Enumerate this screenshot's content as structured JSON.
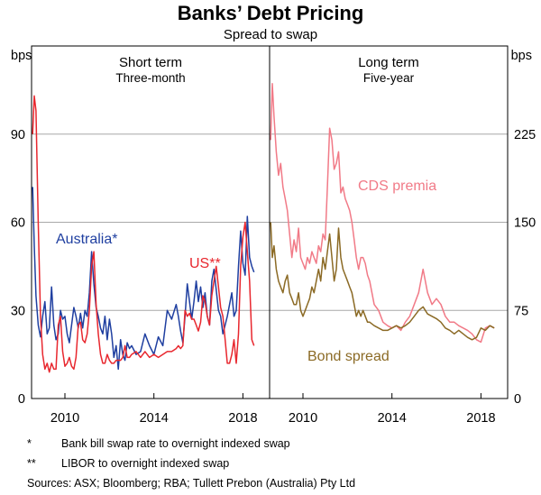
{
  "chart_data": {
    "type": "line",
    "title": "Banks’ Debt Pricing",
    "subtitle": "Spread to swap",
    "units": {
      "left": "bps",
      "right": "bps"
    },
    "panels": [
      {
        "title": "Short term",
        "subtitle": "Three-month",
        "ylim": [
          0,
          120
        ],
        "yticks": [
          0,
          30,
          60,
          90
        ],
        "xlim": [
          2008.5,
          2019.2
        ],
        "xticks": [
          2010,
          2014,
          2018
        ],
        "series": [
          {
            "name": "Australia*",
            "color": "#1f3fa0",
            "x": [
              2008.55,
              2008.62,
              2008.7,
              2008.8,
              2008.9,
              2009.0,
              2009.1,
              2009.2,
              2009.3,
              2009.4,
              2009.5,
              2009.6,
              2009.7,
              2009.8,
              2009.9,
              2010.0,
              2010.1,
              2010.2,
              2010.3,
              2010.4,
              2010.5,
              2010.6,
              2010.7,
              2010.8,
              2010.9,
              2011.0,
              2011.1,
              2011.2,
              2011.3,
              2011.4,
              2011.5,
              2011.6,
              2011.7,
              2011.8,
              2011.9,
              2012.0,
              2012.1,
              2012.2,
              2012.3,
              2012.4,
              2012.5,
              2012.6,
              2012.7,
              2012.8,
              2012.9,
              2013.0,
              2013.2,
              2013.4,
              2013.6,
              2013.8,
              2014.0,
              2014.2,
              2014.4,
              2014.6,
              2014.8,
              2015.0,
              2015.1,
              2015.2,
              2015.3,
              2015.4,
              2015.5,
              2015.6,
              2015.7,
              2015.8,
              2015.9,
              2016.0,
              2016.1,
              2016.2,
              2016.3,
              2016.4,
              2016.5,
              2016.6,
              2016.7,
              2016.8,
              2016.9,
              2017.0,
              2017.1,
              2017.2,
              2017.3,
              2017.4,
              2017.5,
              2017.6,
              2017.7,
              2017.8,
              2017.9,
              2018.0,
              2018.1,
              2018.2,
              2018.3,
              2018.4,
              2018.5
            ],
            "y": [
              72,
              52,
              35,
              25,
              21,
              28,
              33,
              22,
              24,
              38,
              25,
              20,
              22,
              30,
              27,
              28,
              22,
              19,
              25,
              31,
              28,
              24,
              29,
              24,
              30,
              28,
              36,
              50,
              39,
              31,
              28,
              24,
              22,
              28,
              20,
              27,
              22,
              14,
              18,
              10,
              20,
              15,
              13,
              19,
              17,
              18,
              15,
              16,
              22,
              18,
              15,
              21,
              18,
              30,
              27,
              32,
              28,
              23,
              19,
              28,
              39,
              33,
              27,
              33,
              40,
              33,
              38,
              31,
              36,
              28,
              25,
              40,
              44,
              37,
              30,
              28,
              22,
              25,
              28,
              32,
              36,
              28,
              30,
              45,
              57,
              46,
              42,
              62,
              48,
              45,
              43
            ]
          },
          {
            "name": "US**",
            "color": "#e8272e",
            "x": [
              2008.55,
              2008.62,
              2008.7,
              2008.8,
              2008.9,
              2009.0,
              2009.1,
              2009.2,
              2009.3,
              2009.4,
              2009.5,
              2009.6,
              2009.7,
              2009.8,
              2009.9,
              2010.0,
              2010.1,
              2010.2,
              2010.3,
              2010.4,
              2010.5,
              2010.6,
              2010.7,
              2010.8,
              2010.9,
              2011.0,
              2011.1,
              2011.2,
              2011.3,
              2011.4,
              2011.5,
              2011.6,
              2011.7,
              2011.8,
              2011.9,
              2012.0,
              2012.1,
              2012.2,
              2012.3,
              2012.4,
              2012.5,
              2012.6,
              2012.7,
              2012.8,
              2012.9,
              2013.0,
              2013.2,
              2013.4,
              2013.6,
              2013.8,
              2014.0,
              2014.2,
              2014.4,
              2014.6,
              2014.8,
              2015.0,
              2015.1,
              2015.2,
              2015.3,
              2015.4,
              2015.5,
              2015.6,
              2015.7,
              2015.8,
              2015.9,
              2016.0,
              2016.1,
              2016.2,
              2016.3,
              2016.4,
              2016.5,
              2016.6,
              2016.7,
              2016.8,
              2016.9,
              2017.0,
              2017.1,
              2017.2,
              2017.3,
              2017.4,
              2017.5,
              2017.6,
              2017.7,
              2017.8,
              2017.9,
              2018.0,
              2018.1,
              2018.2,
              2018.3,
              2018.4,
              2018.5
            ],
            "y": [
              90,
              103,
              98,
              60,
              28,
              15,
              10,
              12,
              9,
              12,
              10,
              10,
              25,
              28,
              16,
              11,
              12,
              14,
              11,
              10,
              14,
              25,
              26,
              20,
              19,
              22,
              30,
              45,
              50,
              32,
              22,
              15,
              12,
              12,
              15,
              13,
              12,
              12,
              13,
              13,
              13,
              14,
              18,
              14,
              14,
              15,
              16,
              14,
              16,
              14,
              15,
              14,
              15,
              16,
              16,
              17,
              18,
              17,
              18,
              30,
              28,
              29,
              27,
              27,
              25,
              23,
              26,
              35,
              33,
              28,
              25,
              35,
              40,
              45,
              38,
              31,
              28,
              20,
              12,
              12,
              15,
              20,
              12,
              22,
              45,
              55,
              60,
              50,
              40,
              20,
              18
            ]
          }
        ]
      },
      {
        "title": "Long term",
        "subtitle": "Five-year",
        "ylim": [
          0,
          300
        ],
        "yticks": [
          0,
          75,
          150,
          225
        ],
        "xlim": [
          2008.5,
          2019.2
        ],
        "xticks": [
          2010,
          2014,
          2018
        ],
        "series": [
          {
            "name": "CDS premia",
            "color": "#f17a87",
            "x": [
              2008.55,
              2008.62,
              2008.7,
              2008.8,
              2008.9,
              2009.0,
              2009.1,
              2009.2,
              2009.3,
              2009.4,
              2009.5,
              2009.6,
              2009.7,
              2009.8,
              2009.9,
              2010.0,
              2010.1,
              2010.2,
              2010.3,
              2010.4,
              2010.5,
              2010.6,
              2010.7,
              2010.8,
              2010.9,
              2011.0,
              2011.1,
              2011.2,
              2011.3,
              2011.4,
              2011.5,
              2011.6,
              2011.7,
              2011.8,
              2011.9,
              2012.0,
              2012.1,
              2012.2,
              2012.3,
              2012.4,
              2012.5,
              2012.6,
              2012.7,
              2012.8,
              2012.9,
              2013.0,
              2013.2,
              2013.4,
              2013.6,
              2013.8,
              2014.0,
              2014.2,
              2014.4,
              2014.6,
              2014.8,
              2015.0,
              2015.2,
              2015.4,
              2015.6,
              2015.8,
              2016.0,
              2016.2,
              2016.4,
              2016.6,
              2016.8,
              2017.0,
              2017.2,
              2017.4,
              2017.6,
              2017.8,
              2018.0,
              2018.2,
              2018.4,
              2018.6
            ],
            "y": [
              220,
              268,
              240,
              210,
              190,
              200,
              180,
              170,
              160,
              140,
              120,
              135,
              125,
              145,
              120,
              115,
              110,
              120,
              115,
              125,
              120,
              115,
              130,
              125,
              140,
              135,
              180,
              230,
              220,
              195,
              200,
              210,
              175,
              180,
              170,
              165,
              160,
              150,
              135,
              120,
              110,
              120,
              120,
              115,
              105,
              100,
              80,
              75,
              65,
              62,
              60,
              62,
              58,
              65,
              70,
              80,
              90,
              110,
              90,
              80,
              85,
              80,
              70,
              65,
              65,
              62,
              60,
              58,
              55,
              50,
              48,
              60,
              62,
              60
            ]
          },
          {
            "name": "Bond spread",
            "color": "#8b6a25",
            "x": [
              2008.55,
              2008.62,
              2008.7,
              2008.8,
              2008.9,
              2009.0,
              2009.1,
              2009.2,
              2009.3,
              2009.4,
              2009.5,
              2009.6,
              2009.7,
              2009.8,
              2009.9,
              2010.0,
              2010.1,
              2010.2,
              2010.3,
              2010.4,
              2010.5,
              2010.6,
              2010.7,
              2010.8,
              2010.9,
              2011.0,
              2011.1,
              2011.2,
              2011.3,
              2011.4,
              2011.5,
              2011.6,
              2011.7,
              2011.8,
              2011.9,
              2012.0,
              2012.1,
              2012.2,
              2012.3,
              2012.4,
              2012.5,
              2012.6,
              2012.7,
              2012.8,
              2012.9,
              2013.0,
              2013.2,
              2013.4,
              2013.6,
              2013.8,
              2014.0,
              2014.2,
              2014.4,
              2014.6,
              2014.8,
              2015.0,
              2015.2,
              2015.4,
              2015.6,
              2015.8,
              2016.0,
              2016.2,
              2016.4,
              2016.6,
              2016.8,
              2017.0,
              2017.2,
              2017.4,
              2017.6,
              2017.8,
              2018.0,
              2018.2,
              2018.4,
              2018.6
            ],
            "y": [
              150,
              120,
              130,
              110,
              100,
              95,
              90,
              100,
              105,
              90,
              85,
              80,
              80,
              90,
              75,
              70,
              75,
              80,
              85,
              95,
              90,
              100,
              110,
              100,
              120,
              110,
              125,
              140,
              120,
              100,
              110,
              145,
              120,
              110,
              105,
              100,
              95,
              90,
              80,
              70,
              75,
              70,
              75,
              70,
              65,
              65,
              62,
              60,
              58,
              58,
              60,
              62,
              60,
              62,
              65,
              70,
              75,
              78,
              72,
              70,
              68,
              65,
              60,
              58,
              55,
              58,
              55,
              52,
              50,
              52,
              60,
              58,
              62,
              60
            ]
          }
        ]
      }
    ],
    "series_labels": {
      "australia": "Australia*",
      "us": "US**",
      "cds": "CDS premia",
      "bond": "Bond spread"
    },
    "footnotes": [
      {
        "marker": "*",
        "text": "Bank bill swap rate to overnight indexed swap"
      },
      {
        "marker": "**",
        "text": "LIBOR to overnight indexed swap"
      }
    ],
    "sources": "Sources: ASX; Bloomberg; RBA; Tullett Prebon (Australia) Pty Ltd"
  }
}
